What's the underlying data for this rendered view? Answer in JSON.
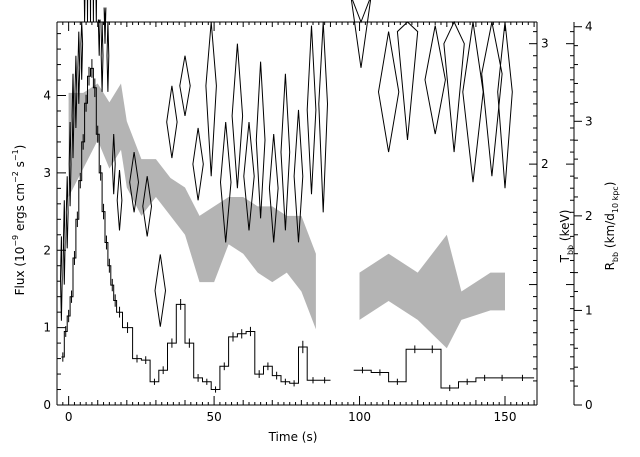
{
  "chart_data": {
    "type": "line",
    "xlabel": "Time (s)",
    "xlim": [
      -4,
      161
    ],
    "xticks": [
      0,
      50,
      100,
      150
    ],
    "left_axis": {
      "label_parts": [
        "Flux (10",
        "−9",
        " ergs cm",
        "−2",
        " s",
        "−1",
        ")"
      ],
      "ylim": [
        0,
        4.95
      ],
      "ticks": [
        0,
        1,
        2,
        3,
        4
      ]
    },
    "temp_axis": {
      "label_parts": [
        "T",
        "bb",
        " (keV)"
      ],
      "ylim": [
        0,
        3.18
      ],
      "ticks": [
        2,
        3
      ]
    },
    "radius_axis": {
      "label_parts": [
        "R",
        "bb",
        " (km/d",
        "10 kpc",
        ")"
      ],
      "ylim": [
        0,
        4.05
      ],
      "ticks": [
        0,
        1,
        2,
        3,
        4
      ]
    },
    "series": [
      {
        "style": "histogram-with-error-bars",
        "bins": [
          [
            -2.5,
            -1.5,
            0.62,
            0.06
          ],
          [
            -1.5,
            -0.5,
            0.95,
            0.07
          ],
          [
            -0.5,
            0.5,
            1.15,
            0.08
          ],
          [
            0.5,
            1.5,
            1.4,
            0.08
          ],
          [
            1.5,
            2.5,
            1.9,
            0.09
          ],
          [
            2.5,
            3.5,
            2.4,
            0.1
          ],
          [
            3.5,
            4.5,
            2.9,
            0.1
          ],
          [
            4.5,
            5.5,
            3.4,
            0.1
          ],
          [
            5.5,
            6.5,
            3.9,
            0.11
          ],
          [
            6.5,
            7.5,
            4.25,
            0.12
          ],
          [
            7.5,
            8.5,
            4.35,
            0.12
          ],
          [
            8.5,
            9.5,
            4.1,
            0.12
          ],
          [
            9.5,
            10.5,
            3.5,
            0.11
          ],
          [
            10.5,
            11.5,
            3.0,
            0.1
          ],
          [
            11.5,
            12.5,
            2.5,
            0.1
          ],
          [
            12.5,
            13.5,
            2.1,
            0.09
          ],
          [
            13.5,
            14.5,
            1.8,
            0.09
          ],
          [
            14.5,
            15.5,
            1.55,
            0.08
          ],
          [
            15.5,
            16.5,
            1.35,
            0.08
          ],
          [
            16.5,
            18.5,
            1.2,
            0.07
          ],
          [
            18.5,
            22,
            1.0,
            0.07
          ],
          [
            22,
            25,
            0.6,
            0.05
          ],
          [
            25,
            28,
            0.58,
            0.05
          ],
          [
            28,
            31,
            0.3,
            0.04
          ],
          [
            31,
            34,
            0.45,
            0.05
          ],
          [
            34,
            37,
            0.8,
            0.06
          ],
          [
            37,
            40,
            1.3,
            0.07
          ],
          [
            40,
            43,
            0.8,
            0.06
          ],
          [
            43,
            46,
            0.35,
            0.05
          ],
          [
            46,
            49,
            0.3,
            0.04
          ],
          [
            49,
            52,
            0.2,
            0.04
          ],
          [
            52,
            55,
            0.5,
            0.05
          ],
          [
            55,
            58,
            0.88,
            0.06
          ],
          [
            58,
            61,
            0.92,
            0.06
          ],
          [
            61,
            64,
            0.95,
            0.06
          ],
          [
            64,
            67,
            0.4,
            0.05
          ],
          [
            67,
            70,
            0.5,
            0.05
          ],
          [
            70,
            73,
            0.38,
            0.05
          ],
          [
            73,
            76,
            0.3,
            0.04
          ],
          [
            76,
            79,
            0.28,
            0.04
          ],
          [
            79,
            82,
            0.75,
            0.08
          ],
          [
            82,
            86,
            0.32,
            0.04
          ],
          [
            86,
            90,
            0.32,
            0.04
          ],
          [
            98,
            104,
            0.45,
            0.04
          ],
          [
            104,
            110,
            0.42,
            0.04
          ],
          [
            110,
            116,
            0.3,
            0.04
          ],
          [
            116,
            122,
            0.72,
            0.05
          ],
          [
            122,
            128,
            0.72,
            0.05
          ],
          [
            128,
            134,
            0.22,
            0.04
          ],
          [
            134,
            140,
            0.3,
            0.04
          ],
          [
            140,
            146,
            0.35,
            0.04
          ],
          [
            146,
            152,
            0.35,
            0.04
          ],
          [
            152,
            160,
            0.35,
            0.04
          ]
        ]
      },
      {
        "style": "diamonds",
        "axis": "temperature",
        "points": [
          [
            -2.5,
            1.05,
            0.3,
            0.7
          ],
          [
            -1.5,
            1.35,
            0.3,
            0.7
          ],
          [
            -0.5,
            1.6,
            0.3,
            0.6
          ],
          [
            0.5,
            2.0,
            0.3,
            0.7
          ],
          [
            1.5,
            2.4,
            0.3,
            0.7
          ],
          [
            2.5,
            2.6,
            0.3,
            0.6
          ],
          [
            3.5,
            2.8,
            0.3,
            0.6
          ],
          [
            4.5,
            3.0,
            0.3,
            0.6
          ],
          [
            5.5,
            3.7,
            0.3,
            0.6
          ],
          [
            6.5,
            4.2,
            0.3,
            0.7
          ],
          [
            7.5,
            4.4,
            0.3,
            0.6
          ],
          [
            8.5,
            4.3,
            0.3,
            0.7
          ],
          [
            9.5,
            3.8,
            0.3,
            0.6
          ],
          [
            10.5,
            3.2,
            0.3,
            0.6
          ],
          [
            11.5,
            2.9,
            0.3,
            0.6
          ],
          [
            12.5,
            3.3,
            0.3,
            0.6
          ],
          [
            13.5,
            2.9,
            0.3,
            0.6
          ],
          [
            15.5,
            2.0,
            0.5,
            0.5
          ],
          [
            17.5,
            1.7,
            0.8,
            0.5
          ],
          [
            22.5,
            1.85,
            1.5,
            0.5
          ],
          [
            27,
            1.65,
            1.5,
            0.5
          ],
          [
            31.5,
            0.95,
            1.8,
            0.6
          ],
          [
            35.5,
            2.35,
            1.8,
            0.6
          ],
          [
            40,
            2.65,
            1.8,
            0.5
          ],
          [
            44.5,
            2.0,
            1.8,
            0.6
          ],
          [
            49,
            2.65,
            1.8,
            1.5
          ],
          [
            54,
            1.85,
            1.8,
            1.0
          ],
          [
            58,
            2.4,
            1.8,
            1.2
          ],
          [
            62,
            1.9,
            1.8,
            0.9
          ],
          [
            66,
            2.2,
            1.5,
            1.3
          ],
          [
            70.5,
            1.8,
            1.5,
            0.9
          ],
          [
            74.5,
            2.1,
            1.5,
            1.3
          ],
          [
            79,
            1.9,
            1.5,
            1.1
          ],
          [
            83.5,
            2.45,
            1.5,
            1.4
          ],
          [
            87.5,
            2.5,
            1.5,
            1.8
          ],
          [
            100.5,
            3.4,
            3.5,
            1.2
          ],
          [
            110,
            2.6,
            3.5,
            1.0
          ],
          [
            116.5,
            3.1,
            3.5,
            1.8
          ],
          [
            126,
            2.7,
            3.5,
            0.9
          ],
          [
            132.5,
            3.0,
            3.5,
            1.8
          ],
          [
            139,
            2.6,
            3.5,
            1.5
          ],
          [
            145.5,
            2.75,
            3.5,
            1.7
          ],
          [
            150,
            2.6,
            2.5,
            1.6
          ]
        ]
      },
      {
        "style": "shaded-band",
        "axis": "radius",
        "band": [
          [
            0,
            2.2,
            3.3
          ],
          [
            5,
            2.5,
            3.3
          ],
          [
            10,
            2.8,
            3.4
          ],
          [
            14,
            2.5,
            3.2
          ],
          [
            18,
            2.7,
            3.4
          ],
          [
            20,
            2.3,
            3.0
          ],
          [
            25,
            2.0,
            2.6
          ],
          [
            30,
            2.2,
            2.6
          ],
          [
            35,
            2.0,
            2.4
          ],
          [
            40,
            1.8,
            2.3
          ],
          [
            45,
            1.3,
            2.0
          ],
          [
            50,
            1.3,
            2.1
          ],
          [
            55,
            1.7,
            2.2
          ],
          [
            60,
            1.6,
            2.2
          ],
          [
            65,
            1.4,
            2.1
          ],
          [
            70,
            1.3,
            2.1
          ],
          [
            75,
            1.4,
            2.0
          ],
          [
            80,
            1.2,
            2.0
          ],
          [
            85,
            0.8,
            1.6
          ],
          [
            100,
            0.9,
            1.4
          ],
          [
            110,
            1.1,
            1.6
          ],
          [
            120,
            0.9,
            1.4
          ],
          [
            130,
            0.6,
            1.8
          ],
          [
            135,
            0.9,
            1.2
          ],
          [
            145,
            1.0,
            1.4
          ],
          [
            150,
            1.0,
            1.4
          ]
        ]
      }
    ]
  }
}
